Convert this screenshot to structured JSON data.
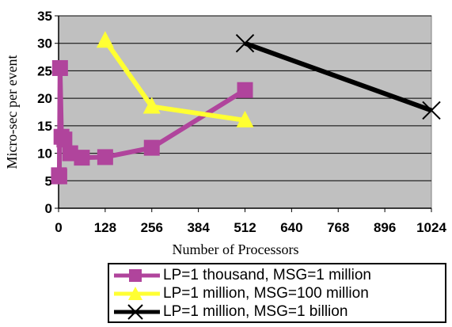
{
  "chart_data": {
    "type": "line",
    "title": "",
    "xlabel": "Number of Processors",
    "ylabel": "Micro-sec per event",
    "xlim": [
      0,
      1024
    ],
    "ylim": [
      0,
      35
    ],
    "x_ticks": [
      "0",
      "128",
      "256",
      "384",
      "512",
      "640",
      "768",
      "896",
      "1024"
    ],
    "y_ticks": [
      "0",
      "5",
      "10",
      "15",
      "20",
      "25",
      "30",
      "35"
    ],
    "grid": "horizontal",
    "legend": "bottom",
    "plot_background": "#c0c0c0",
    "series": [
      {
        "name": "LP=1 thousand, MSG=1 million",
        "color": "#b0449c",
        "marker": "square",
        "points": [
          [
            1,
            6
          ],
          [
            2,
            5.8
          ],
          [
            4,
            25.5
          ],
          [
            8,
            13
          ],
          [
            16,
            12.5
          ],
          [
            32,
            10
          ],
          [
            64,
            9.2
          ],
          [
            128,
            9.3
          ],
          [
            256,
            11
          ],
          [
            512,
            21.5
          ]
        ]
      },
      {
        "name": "LP=1 million, MSG=100 million",
        "color": "#ffff33",
        "marker": "triangle",
        "points": [
          [
            128,
            30.5
          ],
          [
            256,
            18.5
          ],
          [
            512,
            16
          ]
        ]
      },
      {
        "name": "LP=1 million, MSG=1 billion",
        "color": "#000000",
        "marker": "x",
        "points": [
          [
            512,
            30
          ],
          [
            1024,
            17.8
          ]
        ]
      }
    ]
  }
}
